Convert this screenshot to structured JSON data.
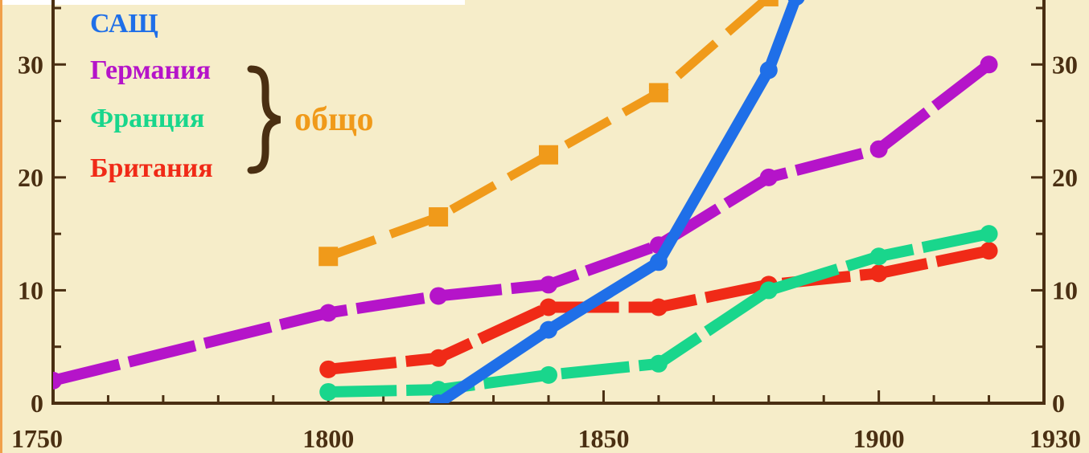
{
  "chart_data": {
    "type": "line",
    "xlim": [
      1750,
      1930
    ],
    "ylim": [
      0,
      35
    ],
    "x_ticks": [
      1750,
      1800,
      1850,
      1900,
      1930
    ],
    "y_ticks": [
      0,
      10,
      20,
      30
    ],
    "grid": false,
    "legend_group_label": "общо",
    "series": [
      {
        "name": "САЩ",
        "color": "#1f6fe8",
        "style": "solid",
        "marker": "circle",
        "x": [
          1820,
          1840,
          1860,
          1880,
          1885
        ],
        "y": [
          0,
          6.5,
          12.5,
          29.5,
          36
        ]
      },
      {
        "name": "Германия",
        "color": "#b514c9",
        "style": "dashed",
        "marker": "circle",
        "x": [
          1750,
          1800,
          1820,
          1840,
          1860,
          1880,
          1900,
          1920
        ],
        "y": [
          2,
          8,
          9.5,
          10.5,
          14,
          20,
          22.5,
          30
        ]
      },
      {
        "name": "Франция",
        "color": "#19d68c",
        "style": "dashed",
        "marker": "circle",
        "x": [
          1800,
          1820,
          1840,
          1860,
          1880,
          1900,
          1920
        ],
        "y": [
          1,
          1.2,
          2.5,
          3.5,
          10,
          13,
          15
        ]
      },
      {
        "name": "Британия",
        "color": "#f02a17",
        "style": "dashed",
        "marker": "circle",
        "x": [
          1800,
          1820,
          1840,
          1860,
          1880,
          1900,
          1920
        ],
        "y": [
          3,
          4,
          8.5,
          8.5,
          10.5,
          11.5,
          13.5
        ]
      },
      {
        "name": "",
        "color": "#f09a1a",
        "style": "dashed",
        "marker": "square",
        "x": [
          1800,
          1820,
          1840,
          1860,
          1880
        ],
        "y": [
          13,
          16.5,
          22,
          27.5,
          36
        ]
      }
    ]
  }
}
